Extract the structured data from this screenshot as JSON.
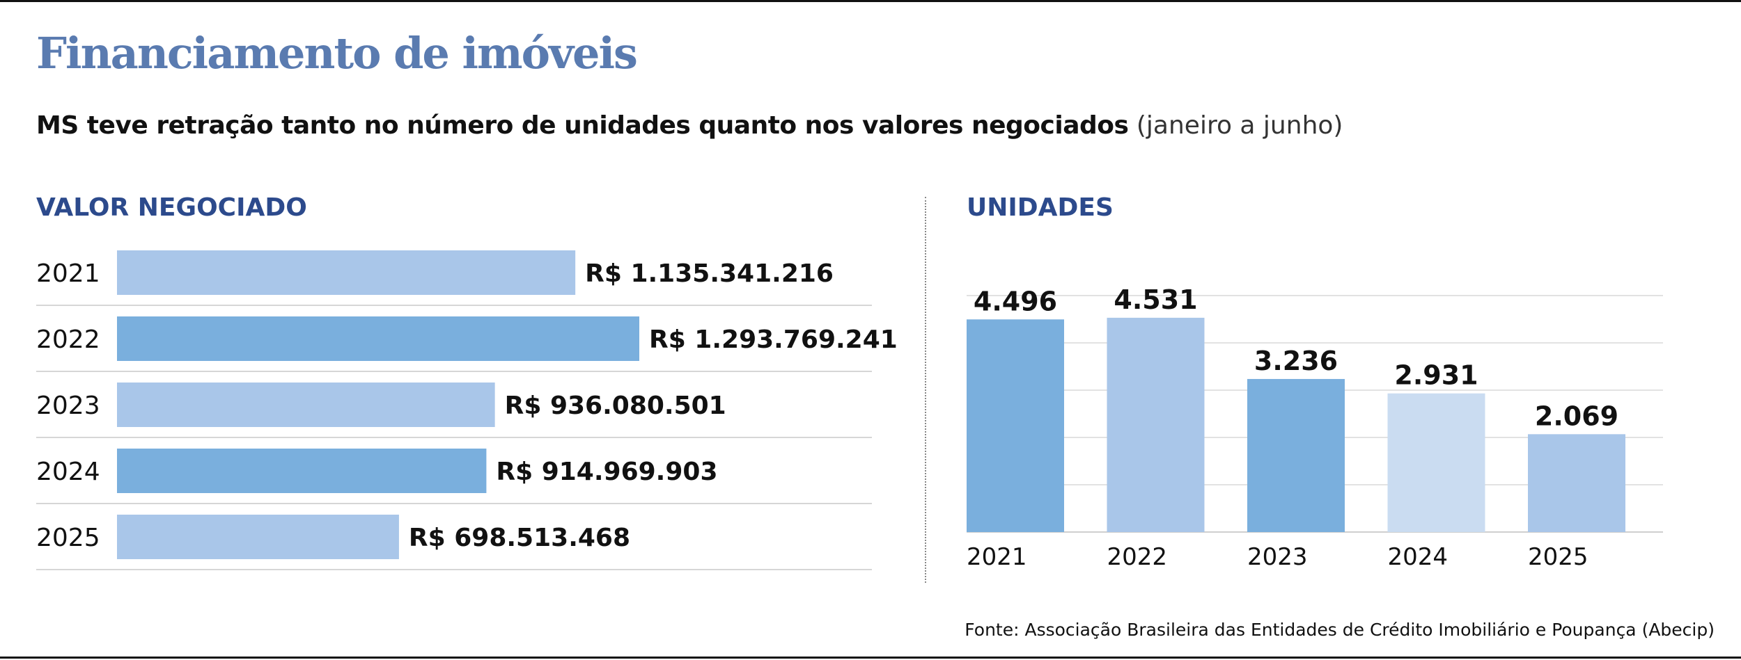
{
  "header": {
    "title": "Financiamento de imóveis",
    "subtitle_bold": "MS teve retração tanto no número de unidades quanto nos valores negociados",
    "subtitle_light": "(janeiro a junho)"
  },
  "footer": {
    "source": "Fonte: Associação Brasileira das Entidades de Crédito Imobiliário e Poupança (Abecip)"
  },
  "colors": {
    "title": "#5a7bb0",
    "section_title": "#2c4a8c",
    "bar_light": "#a9c6e9",
    "bar_medium": "#7aafdd",
    "bar_pale": "#cadcf1"
  },
  "chart_data": [
    {
      "type": "bar",
      "orientation": "horizontal",
      "title": "VALOR NEGOCIADO",
      "categories": [
        "2021",
        "2022",
        "2023",
        "2024",
        "2025"
      ],
      "values": [
        1135341216,
        1293769241,
        936080501,
        914969903,
        698513468
      ],
      "value_labels": [
        "R$ 1.135.341.216",
        "R$ 1.293.769.241",
        "R$ 936.080.501",
        "R$ 914.969.903",
        "R$ 698.513.468"
      ],
      "bar_colors": [
        "#a9c6e9",
        "#7aafdd",
        "#a9c6e9",
        "#7aafdd",
        "#a9c6e9"
      ],
      "grid": false
    },
    {
      "type": "bar",
      "orientation": "vertical",
      "title": "UNIDADES",
      "categories": [
        "2021",
        "2022",
        "2023",
        "2024",
        "2025"
      ],
      "values": [
        4496,
        4531,
        3236,
        2931,
        2069
      ],
      "value_labels": [
        "4.496",
        "4.531",
        "3.236",
        "2.931",
        "2.069"
      ],
      "bar_colors": [
        "#7aafdd",
        "#a9c6e9",
        "#7aafdd",
        "#cadcf1",
        "#a9c6e9"
      ],
      "ylim": [
        0,
        5000
      ],
      "grid": true
    }
  ]
}
